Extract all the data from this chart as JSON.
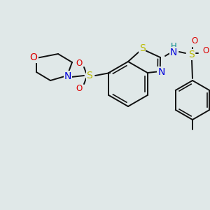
{
  "bg_color": "#e0e8e8",
  "bond_color": "#111111",
  "bond_width": 1.4,
  "figsize": [
    3.0,
    3.0
  ],
  "dpi": 100,
  "colors": {
    "C": "#111111",
    "S": "#bbbb00",
    "N": "#0000dd",
    "O": "#dd0000",
    "H": "#008888"
  }
}
